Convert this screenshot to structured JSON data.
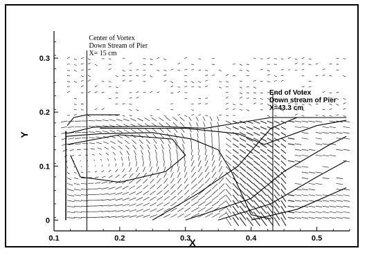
{
  "chart_data": {
    "type": "scatter",
    "title": "",
    "xlabel": "X",
    "ylabel": "Y",
    "xlim": [
      0.1,
      0.55
    ],
    "ylim": [
      -0.02,
      0.35
    ],
    "x_ticks": [
      "0.1",
      "0.2",
      "0.3",
      "0.4",
      "0.5"
    ],
    "x_tick_values": [
      0.1,
      0.2,
      0.3,
      0.4,
      0.5
    ],
    "y_ticks": [
      "0",
      "0.1",
      "0.2",
      "0.3"
    ],
    "y_tick_values": [
      0,
      0.1,
      0.2,
      0.3
    ],
    "description": "velocity vector field with streamlines behind a bridge pier",
    "vortex_center_x": 0.15,
    "vortex_end_x": 0.433,
    "annotations": [
      {
        "lines": [
          "Center of Vortex",
          "Down Stream of Pier",
          "X= 15 cm"
        ],
        "x_data": 0.15,
        "style": "serif"
      },
      {
        "lines": [
          "End of Votex",
          "Down stream of Pier",
          "X=43.3 cm"
        ],
        "x_data": 0.433,
        "style": "bold"
      }
    ]
  }
}
